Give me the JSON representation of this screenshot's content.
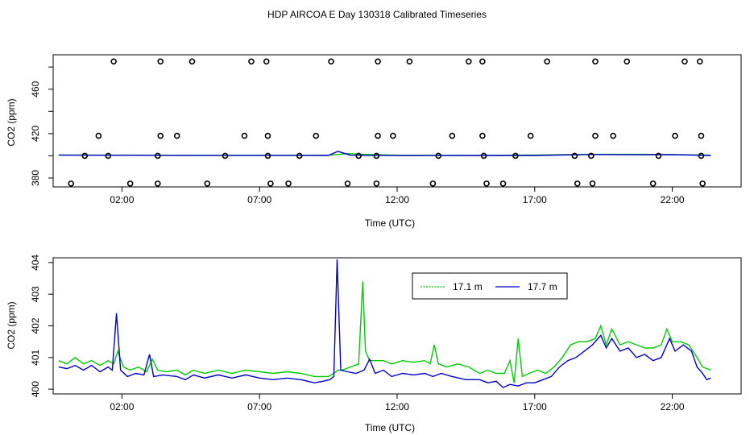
{
  "title": "HDP AIRCOA E  Day 130318  Calibrated Timeseries",
  "colors": {
    "green": "#00cc00",
    "blue": "#0000cc",
    "frame": "#000000"
  },
  "chart_data": [
    {
      "type": "scatter+line",
      "panel": "top",
      "xlabel": "Time (UTC)",
      "ylabel": "CO2 (ppm)",
      "xlim": [
        -0.5,
        24.5
      ],
      "ylim": [
        372,
        491
      ],
      "x_ticks": [
        2,
        7,
        12,
        17,
        22
      ],
      "x_tick_labels": [
        "02:00",
        "07:00",
        "12:00",
        "17:00",
        "22:00"
      ],
      "y_ticks": [
        380,
        400,
        420,
        440,
        460,
        480
      ],
      "y_tick_labels": [
        "380",
        "",
        "420",
        "",
        "460",
        ""
      ],
      "circles": [
        [
          1.7,
          485
        ],
        [
          3.4,
          485
        ],
        [
          4.55,
          485
        ],
        [
          6.7,
          485
        ],
        [
          7.25,
          485
        ],
        [
          9.6,
          485
        ],
        [
          11.3,
          485
        ],
        [
          12.45,
          485
        ],
        [
          14.6,
          485
        ],
        [
          15.1,
          485
        ],
        [
          17.45,
          485
        ],
        [
          19.2,
          485
        ],
        [
          20.35,
          485
        ],
        [
          22.45,
          485
        ],
        [
          23.0,
          485
        ],
        [
          1.15,
          418
        ],
        [
          3.4,
          418
        ],
        [
          4.0,
          418
        ],
        [
          6.45,
          418
        ],
        [
          7.3,
          418
        ],
        [
          9.05,
          418
        ],
        [
          11.3,
          418
        ],
        [
          11.85,
          418
        ],
        [
          14.0,
          418
        ],
        [
          15.1,
          418
        ],
        [
          16.85,
          418
        ],
        [
          19.2,
          418
        ],
        [
          19.85,
          418
        ],
        [
          22.1,
          418
        ],
        [
          23.05,
          418
        ],
        [
          0.65,
          400
        ],
        [
          1.5,
          400
        ],
        [
          3.3,
          400
        ],
        [
          5.75,
          400
        ],
        [
          7.3,
          400
        ],
        [
          8.45,
          400
        ],
        [
          10.6,
          400
        ],
        [
          11.25,
          400
        ],
        [
          13.5,
          400
        ],
        [
          15.15,
          400
        ],
        [
          16.3,
          400
        ],
        [
          18.45,
          400
        ],
        [
          19.05,
          400
        ],
        [
          21.5,
          400
        ],
        [
          23.05,
          400
        ],
        [
          0.15,
          375
        ],
        [
          2.3,
          375
        ],
        [
          3.3,
          375
        ],
        [
          5.1,
          375
        ],
        [
          7.4,
          375
        ],
        [
          8.05,
          375
        ],
        [
          10.2,
          375
        ],
        [
          11.25,
          375
        ],
        [
          13.3,
          375
        ],
        [
          15.25,
          375
        ],
        [
          15.85,
          375
        ],
        [
          18.55,
          375
        ],
        [
          19.1,
          375
        ],
        [
          21.3,
          375
        ],
        [
          23.1,
          375
        ]
      ],
      "series": [
        {
          "points": [
            [
              -0.3,
              400.7
            ],
            [
              2.0,
              400.6
            ],
            [
              4.0,
              400.5
            ],
            [
              7.0,
              400.5
            ],
            [
              9.5,
              400.5
            ],
            [
              10.2,
              402.0
            ],
            [
              10.8,
              401.3
            ],
            [
              12.0,
              400.5
            ],
            [
              15.0,
              400.4
            ],
            [
              17.0,
              400.7
            ],
            [
              19.0,
              401.3
            ],
            [
              21.0,
              401.3
            ],
            [
              22.0,
              401.1
            ],
            [
              23.4,
              400.6
            ]
          ]
        },
        {
          "points": [
            [
              -0.3,
              400.6
            ],
            [
              2.0,
              400.5
            ],
            [
              4.0,
              400.4
            ],
            [
              7.0,
              400.4
            ],
            [
              9.5,
              400.3
            ],
            [
              9.85,
              404.0
            ],
            [
              10.3,
              400.5
            ],
            [
              12.0,
              400.2
            ],
            [
              15.0,
              400.3
            ],
            [
              17.0,
              400.3
            ],
            [
              19.0,
              401.2
            ],
            [
              21.0,
              401.0
            ],
            [
              22.0,
              401.1
            ],
            [
              23.4,
              400.3
            ]
          ]
        }
      ]
    },
    {
      "type": "line",
      "panel": "bottom",
      "xlabel": "Time (UTC)",
      "ylabel": "CO2 (ppm)",
      "xlim": [
        -0.5,
        24.5
      ],
      "ylim": [
        399.85,
        404.15
      ],
      "x_ticks": [
        2,
        7,
        12,
        17,
        22
      ],
      "x_tick_labels": [
        "02:00",
        "07:00",
        "12:00",
        "17:00",
        "22:00"
      ],
      "y_ticks": [
        400,
        401,
        402,
        403,
        404
      ],
      "y_tick_labels": [
        "400",
        "401",
        "402",
        "403",
        "404"
      ],
      "legend": {
        "position": "top-center"
      },
      "series": [
        {
          "name": "17.1 m",
          "color": "#00cc00",
          "points": [
            [
              -0.3,
              400.9
            ],
            [
              0.0,
              400.8
            ],
            [
              0.3,
              401.0
            ],
            [
              0.6,
              400.8
            ],
            [
              0.9,
              400.9
            ],
            [
              1.2,
              400.75
            ],
            [
              1.5,
              400.9
            ],
            [
              1.7,
              400.8
            ],
            [
              1.85,
              401.2
            ],
            [
              2.05,
              400.7
            ],
            [
              2.3,
              400.6
            ],
            [
              2.6,
              400.7
            ],
            [
              2.9,
              400.55
            ],
            [
              3.1,
              400.95
            ],
            [
              3.3,
              400.6
            ],
            [
              3.6,
              400.55
            ],
            [
              4.0,
              400.6
            ],
            [
              4.3,
              400.45
            ],
            [
              4.6,
              400.6
            ],
            [
              5.0,
              400.5
            ],
            [
              5.5,
              400.6
            ],
            [
              6.0,
              400.5
            ],
            [
              6.5,
              400.6
            ],
            [
              7.0,
              400.55
            ],
            [
              7.5,
              400.5
            ],
            [
              8.0,
              400.55
            ],
            [
              8.5,
              400.5
            ],
            [
              9.0,
              400.4
            ],
            [
              9.5,
              400.4
            ],
            [
              9.7,
              400.5
            ],
            [
              9.85,
              400.6
            ],
            [
              10.0,
              400.6
            ],
            [
              10.3,
              400.7
            ],
            [
              10.6,
              400.8
            ],
            [
              10.75,
              403.4
            ],
            [
              10.85,
              401.2
            ],
            [
              11.0,
              400.9
            ],
            [
              11.2,
              400.9
            ],
            [
              11.5,
              400.9
            ],
            [
              11.8,
              400.8
            ],
            [
              12.2,
              400.9
            ],
            [
              12.6,
              400.85
            ],
            [
              13.0,
              400.9
            ],
            [
              13.2,
              400.8
            ],
            [
              13.35,
              401.4
            ],
            [
              13.5,
              400.8
            ],
            [
              13.8,
              400.7
            ],
            [
              14.2,
              400.8
            ],
            [
              14.6,
              400.7
            ],
            [
              15.0,
              400.5
            ],
            [
              15.3,
              400.6
            ],
            [
              15.6,
              400.5
            ],
            [
              15.9,
              400.5
            ],
            [
              16.1,
              400.9
            ],
            [
              16.25,
              400.2
            ],
            [
              16.4,
              401.6
            ],
            [
              16.55,
              400.4
            ],
            [
              16.8,
              400.5
            ],
            [
              17.1,
              400.6
            ],
            [
              17.4,
              400.5
            ],
            [
              17.7,
              400.7
            ],
            [
              18.0,
              401.0
            ],
            [
              18.3,
              401.4
            ],
            [
              18.6,
              401.5
            ],
            [
              18.9,
              401.5
            ],
            [
              19.2,
              401.6
            ],
            [
              19.4,
              402.0
            ],
            [
              19.6,
              401.4
            ],
            [
              19.8,
              401.9
            ],
            [
              20.1,
              401.4
            ],
            [
              20.4,
              401.5
            ],
            [
              20.7,
              401.4
            ],
            [
              21.0,
              401.3
            ],
            [
              21.3,
              401.3
            ],
            [
              21.6,
              401.4
            ],
            [
              21.8,
              401.9
            ],
            [
              22.0,
              401.5
            ],
            [
              22.3,
              401.5
            ],
            [
              22.6,
              401.4
            ],
            [
              22.9,
              401.0
            ],
            [
              23.1,
              400.7
            ],
            [
              23.4,
              400.6
            ]
          ]
        },
        {
          "name": "17.7 m",
          "color": "#0000cc",
          "points": [
            [
              -0.3,
              400.7
            ],
            [
              0.0,
              400.65
            ],
            [
              0.3,
              400.75
            ],
            [
              0.6,
              400.6
            ],
            [
              0.9,
              400.75
            ],
            [
              1.2,
              400.55
            ],
            [
              1.5,
              400.7
            ],
            [
              1.65,
              400.6
            ],
            [
              1.8,
              402.4
            ],
            [
              1.95,
              400.6
            ],
            [
              2.2,
              400.4
            ],
            [
              2.5,
              400.5
            ],
            [
              2.8,
              400.45
            ],
            [
              3.0,
              401.1
            ],
            [
              3.15,
              400.4
            ],
            [
              3.5,
              400.45
            ],
            [
              4.0,
              400.4
            ],
            [
              4.3,
              400.3
            ],
            [
              4.6,
              400.45
            ],
            [
              5.0,
              400.35
            ],
            [
              5.5,
              400.45
            ],
            [
              6.0,
              400.35
            ],
            [
              6.5,
              400.45
            ],
            [
              7.0,
              400.35
            ],
            [
              7.5,
              400.3
            ],
            [
              8.0,
              400.35
            ],
            [
              8.5,
              400.3
            ],
            [
              9.0,
              400.2
            ],
            [
              9.3,
              400.25
            ],
            [
              9.55,
              400.3
            ],
            [
              9.7,
              400.4
            ],
            [
              9.82,
              404.1
            ],
            [
              9.95,
              400.6
            ],
            [
              10.2,
              400.55
            ],
            [
              10.5,
              400.5
            ],
            [
              10.8,
              400.6
            ],
            [
              11.0,
              400.95
            ],
            [
              11.2,
              400.5
            ],
            [
              11.5,
              400.6
            ],
            [
              11.8,
              400.4
            ],
            [
              12.2,
              400.5
            ],
            [
              12.6,
              400.45
            ],
            [
              13.0,
              400.5
            ],
            [
              13.3,
              400.4
            ],
            [
              13.6,
              400.5
            ],
            [
              14.0,
              400.4
            ],
            [
              14.5,
              400.3
            ],
            [
              15.0,
              400.3
            ],
            [
              15.3,
              400.2
            ],
            [
              15.6,
              400.25
            ],
            [
              15.85,
              400.05
            ],
            [
              16.1,
              400.15
            ],
            [
              16.4,
              400.1
            ],
            [
              16.7,
              400.2
            ],
            [
              17.0,
              400.2
            ],
            [
              17.3,
              400.3
            ],
            [
              17.6,
              400.4
            ],
            [
              17.9,
              400.7
            ],
            [
              18.2,
              400.9
            ],
            [
              18.5,
              401.0
            ],
            [
              18.8,
              401.2
            ],
            [
              19.1,
              401.4
            ],
            [
              19.4,
              401.7
            ],
            [
              19.6,
              401.3
            ],
            [
              19.8,
              401.6
            ],
            [
              20.1,
              401.2
            ],
            [
              20.4,
              401.3
            ],
            [
              20.7,
              401.0
            ],
            [
              21.0,
              401.1
            ],
            [
              21.3,
              400.9
            ],
            [
              21.6,
              401.0
            ],
            [
              21.9,
              401.6
            ],
            [
              22.1,
              401.2
            ],
            [
              22.4,
              401.4
            ],
            [
              22.7,
              401.2
            ],
            [
              22.9,
              400.7
            ],
            [
              23.1,
              400.5
            ],
            [
              23.25,
              400.3
            ],
            [
              23.4,
              400.35
            ]
          ]
        }
      ]
    }
  ]
}
